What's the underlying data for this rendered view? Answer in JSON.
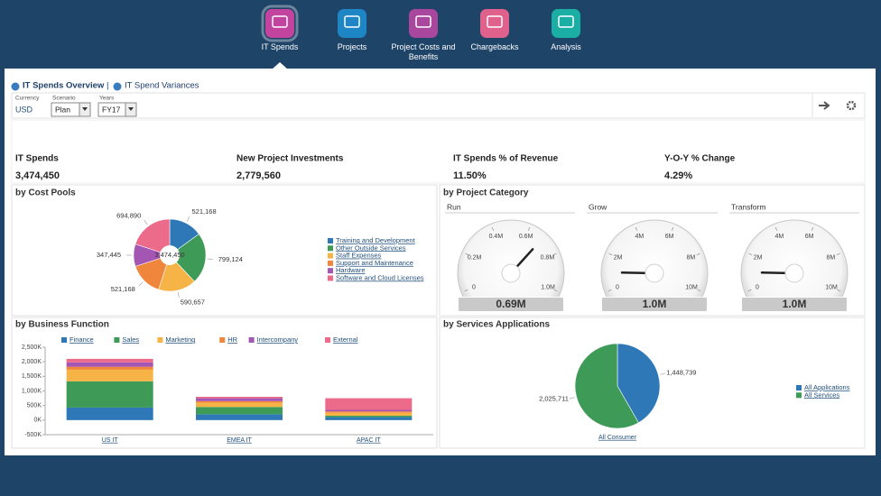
{
  "nav": [
    {
      "label": "IT Spends",
      "color": "#c2449f"
    },
    {
      "label": "Projects",
      "color": "#1f86c6"
    },
    {
      "label": "Project Costs and Benefits",
      "color": "#a9479f"
    },
    {
      "label": "Chargebacks",
      "color": "#e0628c"
    },
    {
      "label": "Analysis",
      "color": "#1aaea5"
    }
  ],
  "tabs": [
    "IT Spends Overview",
    "IT Spend Variances"
  ],
  "tab_separator": "|",
  "filters": [
    {
      "label": "Currency",
      "value": "USD"
    },
    {
      "label": "Scenario",
      "value": "Plan"
    },
    {
      "label": "Years",
      "value": "FY17"
    }
  ],
  "kpis": [
    {
      "label": "IT Spends",
      "value": "3,474,450"
    },
    {
      "label": "New Project Investments",
      "value": "2,779,560"
    },
    {
      "label": "IT Spends % of Revenue",
      "value": "11.50%"
    },
    {
      "label": "Y-O-Y % Change",
      "value": "4.29%"
    }
  ],
  "project_category_title": "by Project Category",
  "chart_data": [
    {
      "type": "pie",
      "title": "by Cost Pools",
      "center_label": "3,474,450",
      "categories": [
        "Training and Development",
        "Other Outside Services",
        "Staff Expenses",
        "Support and Maintenance",
        "Hardware",
        "Software and Cloud Licenses"
      ],
      "values": [
        521168,
        799124,
        590657,
        521168,
        347445,
        694890
      ],
      "value_labels": [
        "521,168",
        "799,124",
        "590,657",
        "521,168",
        "347,445",
        "694,890"
      ],
      "colors": [
        "#2e78b7",
        "#3d9a57",
        "#f6b346",
        "#f0853c",
        "#a456b4",
        "#ec6a8a"
      ]
    },
    {
      "type": "gauge",
      "title": "Run",
      "ylim": [
        0,
        1000000
      ],
      "yticks": [
        0,
        {
          "value": 200000,
          "label": "0.2M"
        },
        {
          "value": 400000,
          "label": "0.4M"
        },
        {
          "value": 600000,
          "label": "0.6M"
        },
        {
          "value": 800000,
          "label": "0.8M"
        },
        {
          "value": 1000000,
          "label": "1.0M"
        }
      ],
      "values": [
        690000
      ],
      "value_labels": [
        "0.69M"
      ]
    },
    {
      "type": "gauge",
      "title": "Grow",
      "ylim": [
        0,
        10000000
      ],
      "yticks": [
        0,
        {
          "value": 2000000,
          "label": "2M"
        },
        {
          "value": 4000000,
          "label": "4M"
        },
        {
          "value": 6000000,
          "label": "6M"
        },
        {
          "value": 8000000,
          "label": "8M"
        },
        {
          "value": 10000000,
          "label": "10M"
        }
      ],
      "values": [
        1000000
      ],
      "value_labels": [
        "1.0M"
      ]
    },
    {
      "type": "gauge",
      "title": "Transform",
      "ylim": [
        0,
        10000000
      ],
      "yticks": [
        0,
        {
          "value": 2000000,
          "label": "2M"
        },
        {
          "value": 4000000,
          "label": "4M"
        },
        {
          "value": 6000000,
          "label": "6M"
        },
        {
          "value": 8000000,
          "label": "8M"
        },
        {
          "value": 10000000,
          "label": "10M"
        }
      ],
      "values": [
        1000000
      ],
      "value_labels": [
        "1.0M"
      ]
    },
    {
      "type": "bar",
      "stacked": true,
      "title": "by Business Function",
      "categories": [
        "US IT",
        "EMEA IT",
        "APAC IT"
      ],
      "series": [
        {
          "name": "Finance",
          "color": "#2e78b7",
          "values": [
            430000,
            200000,
            100000
          ]
        },
        {
          "name": "Sales",
          "color": "#3d9a57",
          "values": [
            900000,
            250000,
            50000
          ]
        },
        {
          "name": "Marketing",
          "color": "#f6b346",
          "values": [
            400000,
            150000,
            100000
          ]
        },
        {
          "name": "HR",
          "color": "#f0853c",
          "values": [
            100000,
            50000,
            50000
          ]
        },
        {
          "name": "Intercompany",
          "color": "#a456b4",
          "values": [
            150000,
            100000,
            50000
          ]
        },
        {
          "name": "External",
          "color": "#ec6a8a",
          "values": [
            120000,
            50000,
            400000
          ]
        }
      ],
      "ylim": [
        -500000,
        2500000
      ],
      "yticks": [
        {
          "value": -500000,
          "label": "-500K"
        },
        {
          "value": 0,
          "label": "0K"
        },
        {
          "value": 500000,
          "label": "500K"
        },
        {
          "value": 1000000,
          "label": "1,000K"
        },
        {
          "value": 1500000,
          "label": "1,500K"
        },
        {
          "value": 2000000,
          "label": "2,000K"
        },
        {
          "value": 2500000,
          "label": "2,500K"
        }
      ],
      "grid": false
    },
    {
      "type": "pie",
      "title": "by Services Applications",
      "x_label": "All Consumer",
      "categories": [
        "All Applications",
        "All Services"
      ],
      "values": [
        1448739,
        2025711
      ],
      "value_labels": [
        "1,448,739",
        "2,025,711"
      ],
      "colors": [
        "#2e78b7",
        "#3d9a57"
      ]
    }
  ]
}
